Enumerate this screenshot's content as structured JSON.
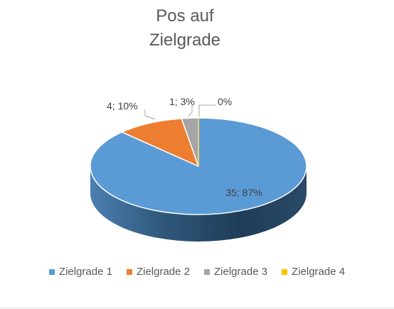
{
  "chart_data": {
    "type": "pie",
    "title_lines": [
      "Pos auf",
      "Zielgrade"
    ],
    "categories": [
      "Zielgrade 1",
      "Zielgrade 2",
      "Zielgrade 3",
      "Zielgrade 4"
    ],
    "values": [
      35,
      4,
      1,
      0
    ],
    "percents": [
      87,
      10,
      3,
      0
    ],
    "data_labels": [
      "35; 87%",
      "4; 10%",
      "1; 3%",
      "0%"
    ],
    "colors": [
      "#5B9BD5",
      "#ED7D31",
      "#A5A5A5",
      "#FFC000"
    ],
    "legend_position": "bottom",
    "style": "3d"
  }
}
